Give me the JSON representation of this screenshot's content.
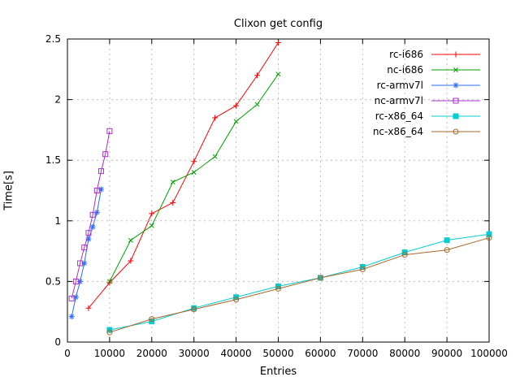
{
  "chart_data": {
    "type": "line",
    "title": "Clixon get config",
    "xlabel": "Entries",
    "ylabel": "Time[s]",
    "xlim": [
      0,
      100000
    ],
    "ylim": [
      0,
      2.5
    ],
    "xticks": [
      0,
      10000,
      20000,
      30000,
      40000,
      50000,
      60000,
      70000,
      80000,
      90000,
      100000
    ],
    "yticks": [
      0,
      0.5,
      1,
      1.5,
      2,
      2.5
    ],
    "grid": true,
    "legend_position": "top-right-inside",
    "grid_color": "#bdbdbd",
    "border_color": "#000000",
    "series": [
      {
        "name": "rc-i686",
        "color": "#ff0000",
        "marker": "plus",
        "points": [
          [
            5000,
            0.28
          ],
          [
            10000,
            0.49
          ],
          [
            15000,
            0.67
          ],
          [
            20000,
            1.06
          ],
          [
            25000,
            1.15
          ],
          [
            30000,
            1.49
          ],
          [
            35000,
            1.85
          ],
          [
            40000,
            1.95
          ],
          [
            45000,
            2.2
          ],
          [
            50000,
            2.47
          ]
        ]
      },
      {
        "name": "nc-i686",
        "color": "#00a000",
        "marker": "cross",
        "points": [
          [
            10000,
            0.5
          ],
          [
            15000,
            0.84
          ],
          [
            20000,
            0.96
          ],
          [
            25000,
            1.32
          ],
          [
            30000,
            1.4
          ],
          [
            35000,
            1.53
          ],
          [
            40000,
            1.82
          ],
          [
            45000,
            1.96
          ],
          [
            50000,
            2.21
          ]
        ]
      },
      {
        "name": "rc-armv7l",
        "color": "#2d6bff",
        "marker": "asterisk",
        "points": [
          [
            1000,
            0.21
          ],
          [
            2000,
            0.37
          ],
          [
            3000,
            0.5
          ],
          [
            4000,
            0.65
          ],
          [
            5000,
            0.85
          ],
          [
            6000,
            0.95
          ],
          [
            7000,
            1.07
          ],
          [
            8000,
            1.26
          ]
        ]
      },
      {
        "name": "nc-armv7l",
        "color": "#a832c8",
        "marker": "square-open",
        "points": [
          [
            1000,
            0.36
          ],
          [
            2000,
            0.5
          ],
          [
            3000,
            0.65
          ],
          [
            4000,
            0.78
          ],
          [
            5000,
            0.9
          ],
          [
            6000,
            1.05
          ],
          [
            7000,
            1.25
          ],
          [
            8000,
            1.41
          ],
          [
            9000,
            1.55
          ],
          [
            10000,
            1.74
          ]
        ]
      },
      {
        "name": "rc-x86_64",
        "color": "#00ced1",
        "marker": "square-filled",
        "points": [
          [
            10000,
            0.1
          ],
          [
            20000,
            0.17
          ],
          [
            30000,
            0.28
          ],
          [
            40000,
            0.37
          ],
          [
            50000,
            0.46
          ],
          [
            60000,
            0.53
          ],
          [
            70000,
            0.62
          ],
          [
            80000,
            0.74
          ],
          [
            90000,
            0.84
          ],
          [
            100000,
            0.89
          ]
        ]
      },
      {
        "name": "nc-x86_64",
        "color": "#a5682a",
        "marker": "circle-open",
        "points": [
          [
            10000,
            0.08
          ],
          [
            20000,
            0.19
          ],
          [
            30000,
            0.27
          ],
          [
            40000,
            0.35
          ],
          [
            50000,
            0.44
          ],
          [
            60000,
            0.53
          ],
          [
            70000,
            0.6
          ],
          [
            80000,
            0.72
          ],
          [
            90000,
            0.76
          ],
          [
            100000,
            0.86
          ]
        ]
      }
    ]
  }
}
